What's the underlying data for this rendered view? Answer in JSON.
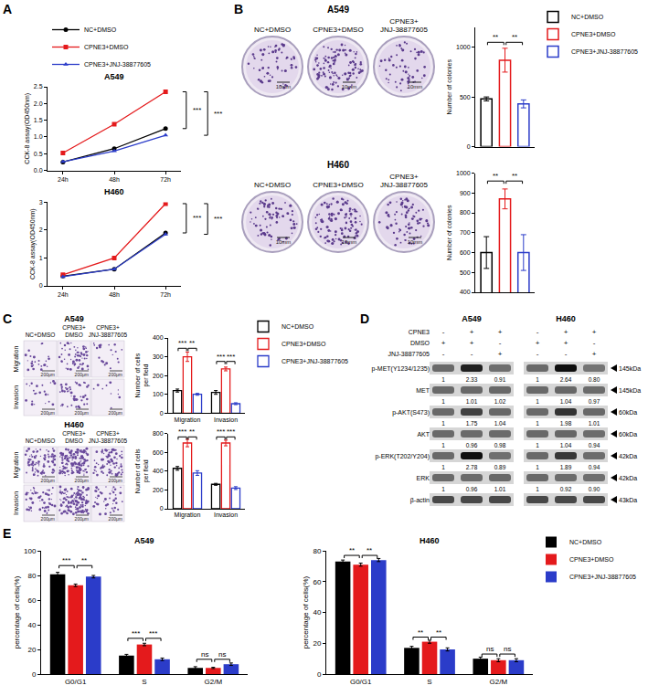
{
  "chart_data": [
    {
      "panel": "A",
      "type": "line",
      "title": "A549",
      "y_label": "CCK-8 assay(OD450nm)",
      "categories": [
        "24h",
        "48h",
        "72h"
      ],
      "series": [
        {
          "name": "NC+DMSO",
          "color": "#000000",
          "marker": "circle",
          "values": [
            0.25,
            0.65,
            1.25
          ]
        },
        {
          "name": "CPNE3+DMSO",
          "color": "#e41a1c",
          "marker": "square",
          "values": [
            0.52,
            1.38,
            2.35
          ]
        },
        {
          "name": "CPNE3+JNJ-38877605",
          "color": "#2b3cc9",
          "marker": "triangle-up",
          "values": [
            0.26,
            0.58,
            1.05
          ]
        }
      ],
      "ylim": [
        0,
        2.5
      ],
      "yticks": [
        {
          "value": 0,
          "label": "0.0"
        },
        0.5,
        {
          "value": 1,
          "label": "1.0"
        },
        1.5,
        {
          "value": 2,
          "label": "2.0"
        },
        2.5
      ],
      "legend": "top",
      "annotations": [
        {
          "text": "***",
          "from": "CPNE3+DMSO",
          "to": "NC+DMSO",
          "at": "72h"
        },
        {
          "text": "***",
          "from": "CPNE3+DMSO",
          "to": "CPNE3+JNJ-38877605",
          "at": "72h"
        }
      ]
    },
    {
      "panel": "A",
      "type": "line",
      "title": "H460",
      "y_label": "CCK-8 assay(OD450nm)",
      "categories": [
        "24h",
        "48h",
        "72h"
      ],
      "series": [
        {
          "name": "NC+DMSO",
          "color": "#000000",
          "marker": "circle",
          "values": [
            0.35,
            0.6,
            1.9
          ]
        },
        {
          "name": "CPNE3+DMSO",
          "color": "#e41a1c",
          "marker": "square",
          "values": [
            0.4,
            1.0,
            2.95
          ]
        },
        {
          "name": "CPNE3+JNJ-38877605",
          "color": "#2b3cc9",
          "marker": "triangle-up",
          "values": [
            0.33,
            0.6,
            1.85
          ]
        }
      ],
      "ylim": [
        0,
        3
      ],
      "yticks": [
        0,
        1,
        2,
        3
      ],
      "annotations": [
        {
          "text": "***",
          "from": "CPNE3+DMSO",
          "to": "NC+DMSO",
          "at": "72h"
        },
        {
          "text": "***",
          "from": "CPNE3+DMSO",
          "to": "CPNE3+JNJ-38877605",
          "at": "72h"
        }
      ]
    },
    {
      "panel": "B",
      "type": "bar",
      "title": "A549",
      "y_label": "Number of colonies",
      "categories": [
        "NC+DMSO",
        "CPNE3+DMSO",
        "CPNE3+JNJ-38877605"
      ],
      "values": [
        480,
        870,
        430
      ],
      "errors": [
        20,
        120,
        40
      ],
      "colors": [
        "#000000",
        "#e41a1c",
        "#2b3cc9"
      ],
      "ylim": [
        0,
        1200
      ],
      "yticks": [
        0,
        500,
        1000
      ],
      "tick_labels": "y",
      "legend": "right",
      "annotations": [
        {
          "text": "**",
          "from": "NC+DMSO",
          "to": "CPNE3+DMSO",
          "y": 1050
        },
        {
          "text": "**",
          "from": "CPNE3+DMSO",
          "to": "CPNE3+JNJ-38877605",
          "y": 1050
        }
      ]
    },
    {
      "panel": "B",
      "type": "bar",
      "title": "H460",
      "y_label": "Number of colonies",
      "categories": [
        "NC+DMSO",
        "CPNE3+DMSO",
        "CPNE3+JNJ-38877605"
      ],
      "values": [
        600,
        870,
        600
      ],
      "errors": [
        80,
        50,
        90
      ],
      "colors": [
        "#000000",
        "#e41a1c",
        "#2b3cc9"
      ],
      "ylim": [
        400,
        1000
      ],
      "yticks": [
        400,
        500,
        600,
        700,
        800,
        900,
        1000
      ],
      "tick_labels": "y",
      "annotations": [
        {
          "text": "**",
          "from": "NC+DMSO",
          "to": "CPNE3+DMSO",
          "y": 960
        },
        {
          "text": "**",
          "from": "CPNE3+DMSO",
          "to": "CPNE3+JNJ-38877605",
          "y": 960
        }
      ]
    },
    {
      "panel": "C",
      "type": "bar",
      "title": "A549",
      "y_label": "Number of cells per field",
      "categories": [
        "Migration",
        "Invasion"
      ],
      "series": [
        {
          "name": "NC+DMSO",
          "color": "#000000",
          "values": [
            120,
            110
          ],
          "errors": [
            8,
            10
          ]
        },
        {
          "name": "CPNE3+DMSO",
          "color": "#e41a1c",
          "values": [
            300,
            235
          ],
          "errors": [
            25,
            10
          ]
        },
        {
          "name": "CPNE3+JNJ-38877605",
          "color": "#2b3cc9",
          "values": [
            100,
            50
          ],
          "errors": [
            5,
            5
          ]
        }
      ],
      "ylim": [
        0,
        400
      ],
      "yticks": [
        0,
        100,
        200,
        300,
        400
      ],
      "legend": "right",
      "annotations": [
        {
          "text": "***",
          "from": "NC+DMSO",
          "to": "CPNE3+DMSO",
          "at": "Migration",
          "y": 345
        },
        {
          "text": "**",
          "from": "CPNE3+DMSO",
          "to": "CPNE3+JNJ-38877605",
          "at": "Migration",
          "y": 345
        },
        {
          "text": "***",
          "from": "NC+DMSO",
          "to": "CPNE3+DMSO",
          "at": "Invasion",
          "y": 275
        },
        {
          "text": "***",
          "from": "CPNE3+DMSO",
          "to": "CPNE3+JNJ-38877605",
          "at": "Invasion",
          "y": 275
        }
      ]
    },
    {
      "panel": "C",
      "type": "bar",
      "title": "H460",
      "y_label": "Number of cells per field",
      "categories": [
        "Migration",
        "Invasion"
      ],
      "series": [
        {
          "name": "NC+DMSO",
          "color": "#000000",
          "values": [
            430,
            260
          ],
          "errors": [
            20,
            10
          ]
        },
        {
          "name": "CPNE3+DMSO",
          "color": "#e41a1c",
          "values": [
            700,
            700
          ],
          "errors": [
            40,
            30
          ]
        },
        {
          "name": "CPNE3+JNJ-38877605",
          "color": "#2b3cc9",
          "values": [
            380,
            220
          ],
          "errors": [
            25,
            15
          ]
        }
      ],
      "ylim": [
        0,
        800
      ],
      "yticks": [
        0,
        200,
        400,
        600,
        800
      ],
      "annotations": [
        {
          "text": "***",
          "from": "NC+DMSO",
          "to": "CPNE3+DMSO",
          "at": "Migration",
          "y": 765
        },
        {
          "text": "**",
          "from": "CPNE3+DMSO",
          "to": "CPNE3+JNJ-38877605",
          "at": "Migration",
          "y": 765
        },
        {
          "text": "***",
          "from": "NC+DMSO",
          "to": "CPNE3+DMSO",
          "at": "Invasion",
          "y": 765
        },
        {
          "text": "***",
          "from": "CPNE3+DMSO",
          "to": "CPNE3+JNJ-38877605",
          "at": "Invasion",
          "y": 765
        }
      ]
    },
    {
      "panel": "E",
      "type": "bar",
      "title": "A549",
      "y_label": "percentage of cells(%)",
      "categories": [
        "G0/G1",
        "S",
        "G2/M"
      ],
      "series": [
        {
          "name": "NC+DMSO",
          "color": "#000000",
          "values": [
            81,
            15,
            5
          ],
          "errors": [
            1.5,
            1,
            1
          ]
        },
        {
          "name": "CPNE3+DMSO",
          "color": "#e41a1c",
          "values": [
            72,
            24,
            5
          ],
          "errors": [
            1,
            1,
            0.5
          ]
        },
        {
          "name": "CPNE3+JNJ-38877605",
          "color": "#2b3cc9",
          "values": [
            79,
            12,
            8
          ],
          "errors": [
            1,
            1,
            1
          ]
        }
      ],
      "ylim": [
        0,
        100
      ],
      "yticks": [
        0,
        20,
        40,
        60,
        80,
        100
      ],
      "annotations": [
        {
          "text": "***",
          "from": "NC+DMSO",
          "to": "CPNE3+DMSO",
          "at": "G0/G1",
          "y": 88
        },
        {
          "text": "**",
          "from": "CPNE3+DMSO",
          "to": "CPNE3+JNJ-38877605",
          "at": "G0/G1",
          "y": 88
        },
        {
          "text": "***",
          "from": "NC+DMSO",
          "to": "CPNE3+DMSO",
          "at": "S",
          "y": 29
        },
        {
          "text": "***",
          "from": "CPNE3+DMSO",
          "to": "CPNE3+JNJ-38877605",
          "at": "S",
          "y": 29
        },
        {
          "text": "ns",
          "from": "NC+DMSO",
          "to": "CPNE3+DMSO",
          "at": "G2/M",
          "y": 12
        },
        {
          "text": "ns",
          "from": "CPNE3+DMSO",
          "to": "CPNE3+JNJ-38877605",
          "at": "G2/M",
          "y": 12
        }
      ]
    },
    {
      "panel": "E",
      "type": "bar",
      "title": "H460",
      "y_label": "percentage of cells(%)",
      "categories": [
        "G0/G1",
        "S",
        "G2/M"
      ],
      "series": [
        {
          "name": "NC+DMSO",
          "color": "#000000",
          "values": [
            73,
            17,
            10
          ],
          "errors": [
            1,
            1,
            1
          ]
        },
        {
          "name": "CPNE3+DMSO",
          "color": "#e41a1c",
          "values": [
            71,
            21,
            9
          ],
          "errors": [
            1,
            1,
            1
          ]
        },
        {
          "name": "CPNE3+JNJ-38877605",
          "color": "#2b3cc9",
          "values": [
            74,
            16,
            9
          ],
          "errors": [
            1,
            1,
            1
          ]
        }
      ],
      "ylim": [
        0,
        80
      ],
      "yticks": [
        0,
        20,
        40,
        60,
        80
      ],
      "legend": "right",
      "annotations": [
        {
          "text": "**",
          "from": "NC+DMSO",
          "to": "CPNE3+DMSO",
          "at": "G0/G1",
          "y": 77
        },
        {
          "text": "**",
          "from": "CPNE3+DMSO",
          "to": "CPNE3+JNJ-38877605",
          "at": "G0/G1",
          "y": 77
        },
        {
          "text": "**",
          "from": "NC+DMSO",
          "to": "CPNE3+DMSO",
          "at": "S",
          "y": 24
        },
        {
          "text": "**",
          "from": "CPNE3+DMSO",
          "to": "CPNE3+JNJ-38877605",
          "at": "S",
          "y": 24
        },
        {
          "text": "ns",
          "from": "NC+DMSO",
          "to": "CPNE3+DMSO",
          "at": "G2/M",
          "y": 13
        },
        {
          "text": "ns",
          "from": "CPNE3+DMSO",
          "to": "CPNE3+JNJ-38877605",
          "at": "G2/M",
          "y": 13
        }
      ]
    }
  ],
  "images": {
    "B": {
      "scale_label": "10mm"
    },
    "C": {
      "scale_label": "200μm"
    }
  },
  "blot": {
    "panel": "D",
    "cell_lines": [
      "A549",
      "H460"
    ],
    "treatments": [
      {
        "label": "CPNE3",
        "signs": [
          "-",
          "+",
          "+"
        ]
      },
      {
        "label": "DMSO",
        "signs": [
          "+",
          "+",
          "-"
        ]
      },
      {
        "label": "JNJ-38877605",
        "signs": [
          "-",
          "-",
          "+"
        ]
      }
    ],
    "rows": [
      {
        "label": "p-MET(Y1234/1235)",
        "size": "145kDa",
        "values": [
          [
            "1",
            "2.33",
            "0.91"
          ],
          [
            "1",
            "2.64",
            "0.80"
          ]
        ]
      },
      {
        "label": "MET",
        "size": "145kDa",
        "values": [
          [
            "1",
            "1.01",
            "1.02"
          ],
          [
            "1",
            "1.04",
            "0.97"
          ]
        ]
      },
      {
        "label": "p-AKT(S473)",
        "size": "60kDa",
        "values": [
          [
            "1",
            "1.75",
            "1.04"
          ],
          [
            "1",
            "1.98",
            "1.01"
          ]
        ]
      },
      {
        "label": "AKT",
        "size": "60kDa",
        "values": [
          [
            "1",
            "0.96",
            "0.98"
          ],
          [
            "1",
            "1.04",
            "0.94"
          ]
        ]
      },
      {
        "label": "p-ERK(T202/Y204)",
        "size": "42kDa",
        "values": [
          [
            "1",
            "2.78",
            "0.89"
          ],
          [
            "1",
            "1.89",
            "0.94"
          ]
        ]
      },
      {
        "label": "ERK",
        "size": "42kDa",
        "values": [
          [
            "1",
            "0.96",
            "1.01"
          ],
          [
            "1",
            "0.92",
            "0.90"
          ]
        ]
      },
      {
        "label": "β-actin",
        "size": "43kDa",
        "values": []
      }
    ]
  }
}
